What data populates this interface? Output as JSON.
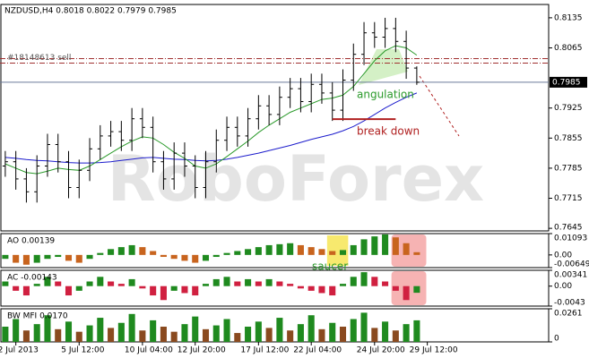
{
  "chart_data": [
    {
      "type": "ohlc",
      "title": "NZDUSD,H4  0.8018 0.8022 0.7979 0.7985",
      "watermark": "RoboForex",
      "open": [
        0.779,
        0.78,
        0.776,
        0.773,
        0.779,
        0.784,
        0.78,
        0.774,
        0.778,
        0.783,
        0.786,
        0.787,
        0.785,
        0.79,
        0.788,
        0.78,
        0.776,
        0.782,
        0.779,
        0.774,
        0.78,
        0.785,
        0.788,
        0.786,
        0.79,
        0.793,
        0.791,
        0.795,
        0.797,
        0.794,
        0.798,
        0.796,
        0.792,
        0.799,
        0.805,
        0.81,
        0.809,
        0.811,
        0.808,
        0.8018
      ],
      "high": [
        0.7825,
        0.7825,
        0.7785,
        0.7815,
        0.7865,
        0.7865,
        0.7825,
        0.7805,
        0.7855,
        0.7885,
        0.7895,
        0.7895,
        0.7925,
        0.7925,
        0.7905,
        0.7825,
        0.7845,
        0.7845,
        0.7815,
        0.7825,
        0.7875,
        0.7905,
        0.7905,
        0.7925,
        0.7955,
        0.7955,
        0.7975,
        0.7995,
        0.7995,
        0.8005,
        0.8005,
        0.7985,
        0.8015,
        0.8075,
        0.8125,
        0.8125,
        0.8135,
        0.8135,
        0.8105,
        0.8022
      ],
      "low": [
        0.7765,
        0.7735,
        0.7705,
        0.7705,
        0.7765,
        0.7775,
        0.7715,
        0.7715,
        0.7755,
        0.7805,
        0.7835,
        0.7825,
        0.7825,
        0.7855,
        0.7775,
        0.7735,
        0.7735,
        0.7765,
        0.7715,
        0.7715,
        0.7775,
        0.7825,
        0.7835,
        0.7835,
        0.7875,
        0.7885,
        0.7885,
        0.7925,
        0.7915,
        0.7915,
        0.7935,
        0.7895,
        0.7895,
        0.7965,
        0.8025,
        0.8065,
        0.8065,
        0.8055,
        0.7993,
        0.7979
      ],
      "close": [
        0.78,
        0.776,
        0.773,
        0.779,
        0.784,
        0.78,
        0.774,
        0.778,
        0.783,
        0.786,
        0.787,
        0.785,
        0.79,
        0.788,
        0.78,
        0.776,
        0.782,
        0.779,
        0.774,
        0.78,
        0.785,
        0.788,
        0.786,
        0.79,
        0.793,
        0.791,
        0.795,
        0.797,
        0.794,
        0.798,
        0.796,
        0.792,
        0.799,
        0.805,
        0.81,
        0.809,
        0.811,
        0.808,
        0.8018,
        0.7985
      ],
      "moving_averages": [
        {
          "color": "#1c1ccc",
          "values": [
            0.781,
            0.7808,
            0.7805,
            0.7803,
            0.7802,
            0.78,
            0.7798,
            0.7797,
            0.7797,
            0.7798,
            0.78,
            0.7803,
            0.7806,
            0.7809,
            0.781,
            0.7808,
            0.7806,
            0.7805,
            0.7803,
            0.7802,
            0.7803,
            0.7806,
            0.781,
            0.7815,
            0.782,
            0.7826,
            0.7832,
            0.7838,
            0.7845,
            0.7852,
            0.7858,
            0.7864,
            0.7872,
            0.7882,
            0.7895,
            0.791,
            0.7925,
            0.7938,
            0.795,
            0.796
          ]
        },
        {
          "color": "#2a9a2a",
          "values": [
            0.7795,
            0.7785,
            0.7775,
            0.7772,
            0.7778,
            0.7785,
            0.7782,
            0.778,
            0.779,
            0.7805,
            0.782,
            0.7835,
            0.7848,
            0.7858,
            0.7855,
            0.784,
            0.7822,
            0.7808,
            0.779,
            0.7785,
            0.7795,
            0.7812,
            0.783,
            0.7848,
            0.7868,
            0.7885,
            0.79,
            0.7915,
            0.7925,
            0.7935,
            0.7945,
            0.7948,
            0.7955,
            0.7975,
            0.8005,
            0.8035,
            0.8058,
            0.807,
            0.8065,
            0.8048
          ]
        }
      ],
      "order_line": {
        "label": "#18148613 sell",
        "value": 0.804,
        "color": "#a03030"
      },
      "annotations": [
        {
          "text": "angulation",
          "color": "#2a9a2a"
        },
        {
          "text": "break down",
          "value": 0.7899,
          "color": "#b02020"
        }
      ],
      "xlim": [
        -0.5,
        51.5
      ],
      "ylim": [
        0.7639,
        0.8166
      ],
      "yticks": [
        0.8135,
        0.8065,
        0.7925,
        0.7855,
        0.7785,
        0.7715,
        0.7645
      ],
      "xticks": [
        {
          "value": 1,
          "label": "2 Jul 2013"
        },
        {
          "value": 7,
          "label": "5 Jul 12:00"
        },
        {
          "value": 13,
          "label": "10 Jul 04:00"
        },
        {
          "value": 18,
          "label": "12 Jul 20:00"
        },
        {
          "value": 24,
          "label": "17 Jul 12:00"
        },
        {
          "value": 29,
          "label": "22 Jul 04:00"
        },
        {
          "value": 35,
          "label": "24 Jul 20:00"
        },
        {
          "value": 40,
          "label": "29 Jul 12:00"
        }
      ],
      "color": "#000000"
    },
    {
      "type": "histogram",
      "title": "AO 0.00139",
      "annotation": "saucer",
      "values": [
        -0.002,
        -0.004,
        -0.005,
        -0.004,
        -0.002,
        -0.001,
        -0.003,
        -0.004,
        -0.002,
        0.001,
        0.003,
        0.004,
        0.005,
        0.004,
        0.002,
        -0.001,
        -0.002,
        -0.003,
        -0.004,
        -0.003,
        -0.001,
        0.001,
        0.002,
        0.003,
        0.004,
        0.005,
        0.0055,
        0.006,
        0.005,
        0.004,
        0.003,
        0.002,
        0.0025,
        0.005,
        0.008,
        0.0095,
        0.0105,
        0.009,
        0.006,
        0.00139
      ],
      "ylim": [
        -0.00649,
        0.01093
      ],
      "yticks": [
        0.01093,
        {
          "value": 0,
          "label": "0.00"
        },
        -0.00649
      ],
      "up_color": "#1f8a1f",
      "down_color": "#c8641e"
    },
    {
      "type": "histogram",
      "title": "AC -0.00143",
      "values": [
        0.001,
        -0.001,
        -0.002,
        0.0005,
        0.002,
        0.001,
        -0.002,
        -0.001,
        0.001,
        0.002,
        0.001,
        0.0005,
        0.0015,
        -0.0005,
        -0.002,
        -0.003,
        -0.001,
        -0.0015,
        -0.002,
        0.0005,
        0.0015,
        0.002,
        0.001,
        0.0015,
        0.001,
        0.0015,
        0.001,
        0.0005,
        -0.0005,
        -0.001,
        -0.0015,
        -0.002,
        0.0005,
        0.002,
        0.003,
        0.002,
        0.001,
        -0.001,
        -0.003,
        -0.00143
      ],
      "ylim": [
        -0.0043,
        0.00341
      ],
      "yticks": [
        0.00341,
        {
          "value": 0,
          "label": "0.00"
        },
        -0.0043
      ],
      "up_color": "#1f8a1f",
      "down_color": "#d02040"
    },
    {
      "type": "histogram",
      "title": "BW MFI 0.0170",
      "values": [
        0.012,
        0.018,
        0.009,
        0.014,
        0.021,
        0.01,
        0.016,
        0.008,
        0.013,
        0.019,
        0.011,
        0.015,
        0.022,
        0.009,
        0.017,
        0.012,
        0.008,
        0.014,
        0.02,
        0.01,
        0.013,
        0.018,
        0.007,
        0.012,
        0.016,
        0.011,
        0.019,
        0.009,
        0.014,
        0.021,
        0.01,
        0.015,
        0.012,
        0.018,
        0.023,
        0.011,
        0.016,
        0.009,
        0.014,
        0.017
      ],
      "ylim": [
        0,
        0.0261
      ],
      "yticks": [
        0.0261,
        0
      ],
      "up_color": "#1f8a1f",
      "down_color": "#8a4a1f"
    }
  ]
}
